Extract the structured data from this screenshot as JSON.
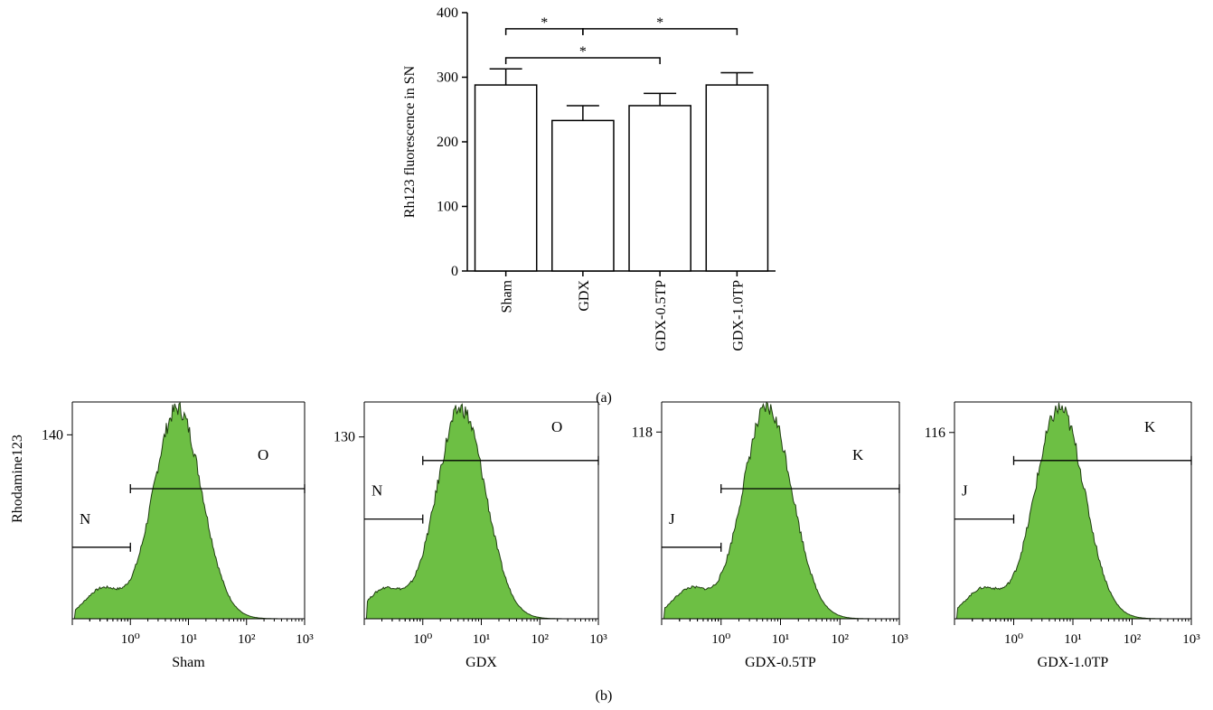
{
  "colors": {
    "bar_fill": "#ffffff",
    "stroke": "#000000",
    "histogram_fill": "#6dbf44",
    "histogram_edge": "#1f3d10"
  },
  "panel_a": {
    "label": "(a)",
    "chart_data": {
      "type": "bar",
      "ylabel": "Rh123 fluorescence in SN",
      "ylim": [
        0,
        400
      ],
      "yticks": [
        "0",
        "100",
        "200",
        "300",
        "400"
      ],
      "categories": [
        "Sham",
        "GDX",
        "GDX-0.5TP",
        "GDX-1.0TP"
      ],
      "values": [
        288,
        233,
        256,
        288
      ],
      "errors": [
        25,
        23,
        19,
        19
      ],
      "significance": [
        {
          "from": 0,
          "to": 1,
          "label": "*",
          "y": 375
        },
        {
          "from": 1,
          "to": 3,
          "label": "*",
          "y": 375
        },
        {
          "from": 0,
          "to": 2,
          "label": "*",
          "y": 330
        }
      ]
    }
  },
  "panel_b": {
    "label": "(b)",
    "ylabel": "Rhodamine123",
    "chart_data": [
      {
        "type": "area",
        "xlabel": "Sham",
        "xscale": "log",
        "xlim": [
          0.1,
          1000
        ],
        "xticks": [
          "10⁰",
          "10¹",
          "10²",
          "10³"
        ],
        "ytick": "140",
        "ytick_value": 140,
        "ymax": 165,
        "peak_x": 6.5,
        "gates": [
          {
            "label": "N",
            "from": 0.1,
            "to": 1.0,
            "level": 0.33
          },
          {
            "label": "O",
            "from": 1.0,
            "to": 1000,
            "level": 0.6
          }
        ]
      },
      {
        "type": "area",
        "xlabel": "GDX",
        "xscale": "log",
        "xlim": [
          0.1,
          1000
        ],
        "xticks": [
          "10⁰",
          "10¹",
          "10²",
          "10³"
        ],
        "ytick": "130",
        "ytick_value": 130,
        "ymax": 155,
        "peak_x": 4.5,
        "gates": [
          {
            "label": "N",
            "from": 0.1,
            "to": 1.0,
            "level": 0.46
          },
          {
            "label": "O",
            "from": 1.0,
            "to": 1000,
            "level": 0.73
          }
        ]
      },
      {
        "type": "area",
        "xlabel": "GDX-0.5TP",
        "xscale": "log",
        "xlim": [
          0.1,
          1000
        ],
        "xticks": [
          "10⁰",
          "10¹",
          "10²",
          "10³"
        ],
        "ytick": "118",
        "ytick_value": 118,
        "ymax": 137,
        "peak_x": 6.0,
        "gates": [
          {
            "label": "J",
            "from": 0.1,
            "to": 1.0,
            "level": 0.33
          },
          {
            "label": "K",
            "from": 1.0,
            "to": 1000,
            "level": 0.6
          }
        ]
      },
      {
        "type": "area",
        "xlabel": "GDX-1.0TP",
        "xscale": "log",
        "xlim": [
          0.1,
          1000
        ],
        "xticks": [
          "10⁰",
          "10¹",
          "10²",
          "10³"
        ],
        "ytick": "116",
        "ytick_value": 116,
        "ymax": 135,
        "peak_x": 6.0,
        "gates": [
          {
            "label": "J",
            "from": 0.1,
            "to": 1.0,
            "level": 0.46
          },
          {
            "label": "K",
            "from": 1.0,
            "to": 1000,
            "level": 0.73
          }
        ]
      }
    ]
  }
}
